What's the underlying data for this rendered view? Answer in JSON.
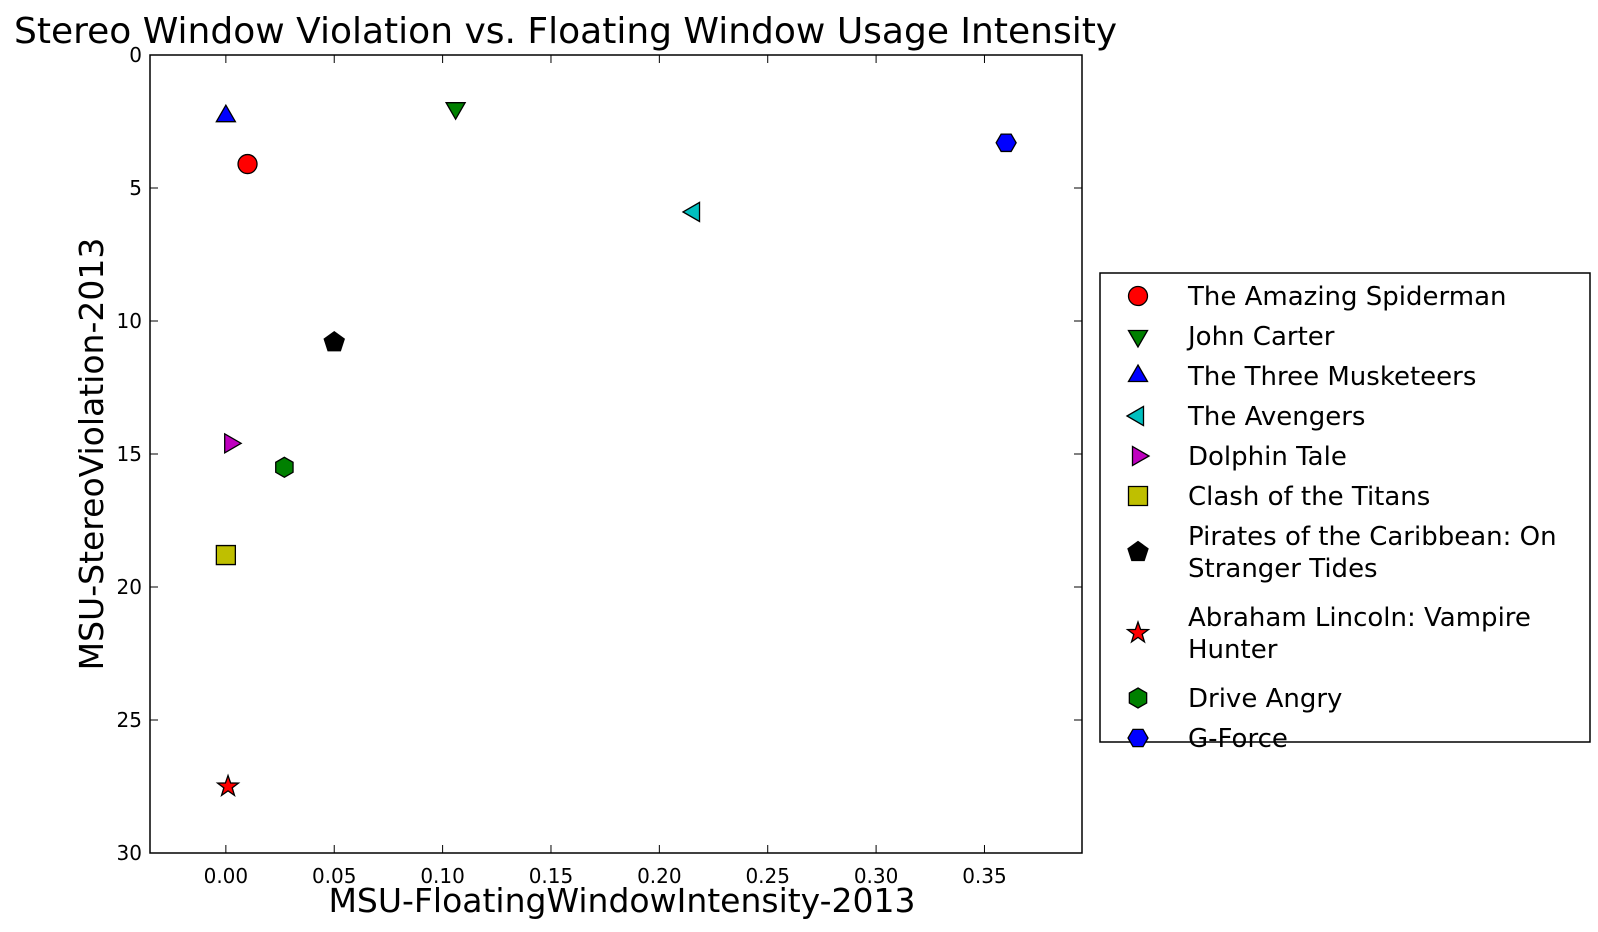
{
  "chart_data": {
    "type": "scatter",
    "title": "Stereo Window Violation vs. Floating Window Usage Intensity",
    "xlabel": "MSU-FloatingWindowIntensity-2013",
    "ylabel": "MSU-StereoViolation-2013",
    "xlim": [
      -0.035,
      0.395
    ],
    "ylim": [
      0,
      30
    ],
    "y_inverted": true,
    "grid": false,
    "legend_position": "right",
    "x_ticks": [
      "0.00",
      "0.05",
      "0.10",
      "0.15",
      "0.20",
      "0.25",
      "0.30",
      "0.35"
    ],
    "x_tick_values": [
      0,
      0.05,
      0.1,
      0.15,
      0.2,
      0.25,
      0.3,
      0.35
    ],
    "y_ticks": [
      "0",
      "5",
      "10",
      "15",
      "20",
      "25",
      "30"
    ],
    "y_tick_values": [
      0,
      5,
      10,
      15,
      20,
      25,
      30
    ],
    "series": [
      {
        "name": "The Amazing Spiderman",
        "legend_lines": [
          "The Amazing Spiderman"
        ],
        "x": 0.01,
        "y": 4.1,
        "marker": "circle",
        "color": "#ff0000"
      },
      {
        "name": "John Carter",
        "legend_lines": [
          "John Carter"
        ],
        "x": 0.106,
        "y": 2.0,
        "marker": "triangle-down",
        "color": "#008000"
      },
      {
        "name": "The Three Musketeers",
        "legend_lines": [
          "The Three Musketeers"
        ],
        "x": 0.0,
        "y": 2.3,
        "marker": "triangle-up",
        "color": "#0000ff"
      },
      {
        "name": "The Avengers",
        "legend_lines": [
          "The Avengers"
        ],
        "x": 0.216,
        "y": 5.9,
        "marker": "triangle-left",
        "color": "#00bfbf"
      },
      {
        "name": "Dolphin Tale",
        "legend_lines": [
          "Dolphin Tale"
        ],
        "x": 0.002,
        "y": 14.6,
        "marker": "triangle-right",
        "color": "#bf00bf"
      },
      {
        "name": "Clash of the Titans",
        "legend_lines": [
          "Clash of the Titans"
        ],
        "x": 0.0,
        "y": 18.8,
        "marker": "square",
        "color": "#bfbf00"
      },
      {
        "name": "Pirates of the Caribbean: On Stranger Tides",
        "legend_lines": [
          "Pirates of the Caribbean: On",
          "Stranger Tides"
        ],
        "x": 0.05,
        "y": 10.8,
        "marker": "pentagon",
        "color": "#000000"
      },
      {
        "name": "Abraham Lincoln: Vampire Hunter",
        "legend_lines": [
          "Abraham Lincoln: Vampire",
          "Hunter"
        ],
        "x": 0.001,
        "y": 27.5,
        "marker": "star",
        "color": "#ff0000"
      },
      {
        "name": "Drive Angry",
        "legend_lines": [
          "Drive Angry"
        ],
        "x": 0.027,
        "y": 15.5,
        "marker": "hexagon",
        "color": "#008000"
      },
      {
        "name": "G-Force",
        "legend_lines": [
          "G-Force"
        ],
        "x": 0.36,
        "y": 3.3,
        "marker": "hexagon-flat",
        "color": "#0000ff"
      }
    ]
  }
}
